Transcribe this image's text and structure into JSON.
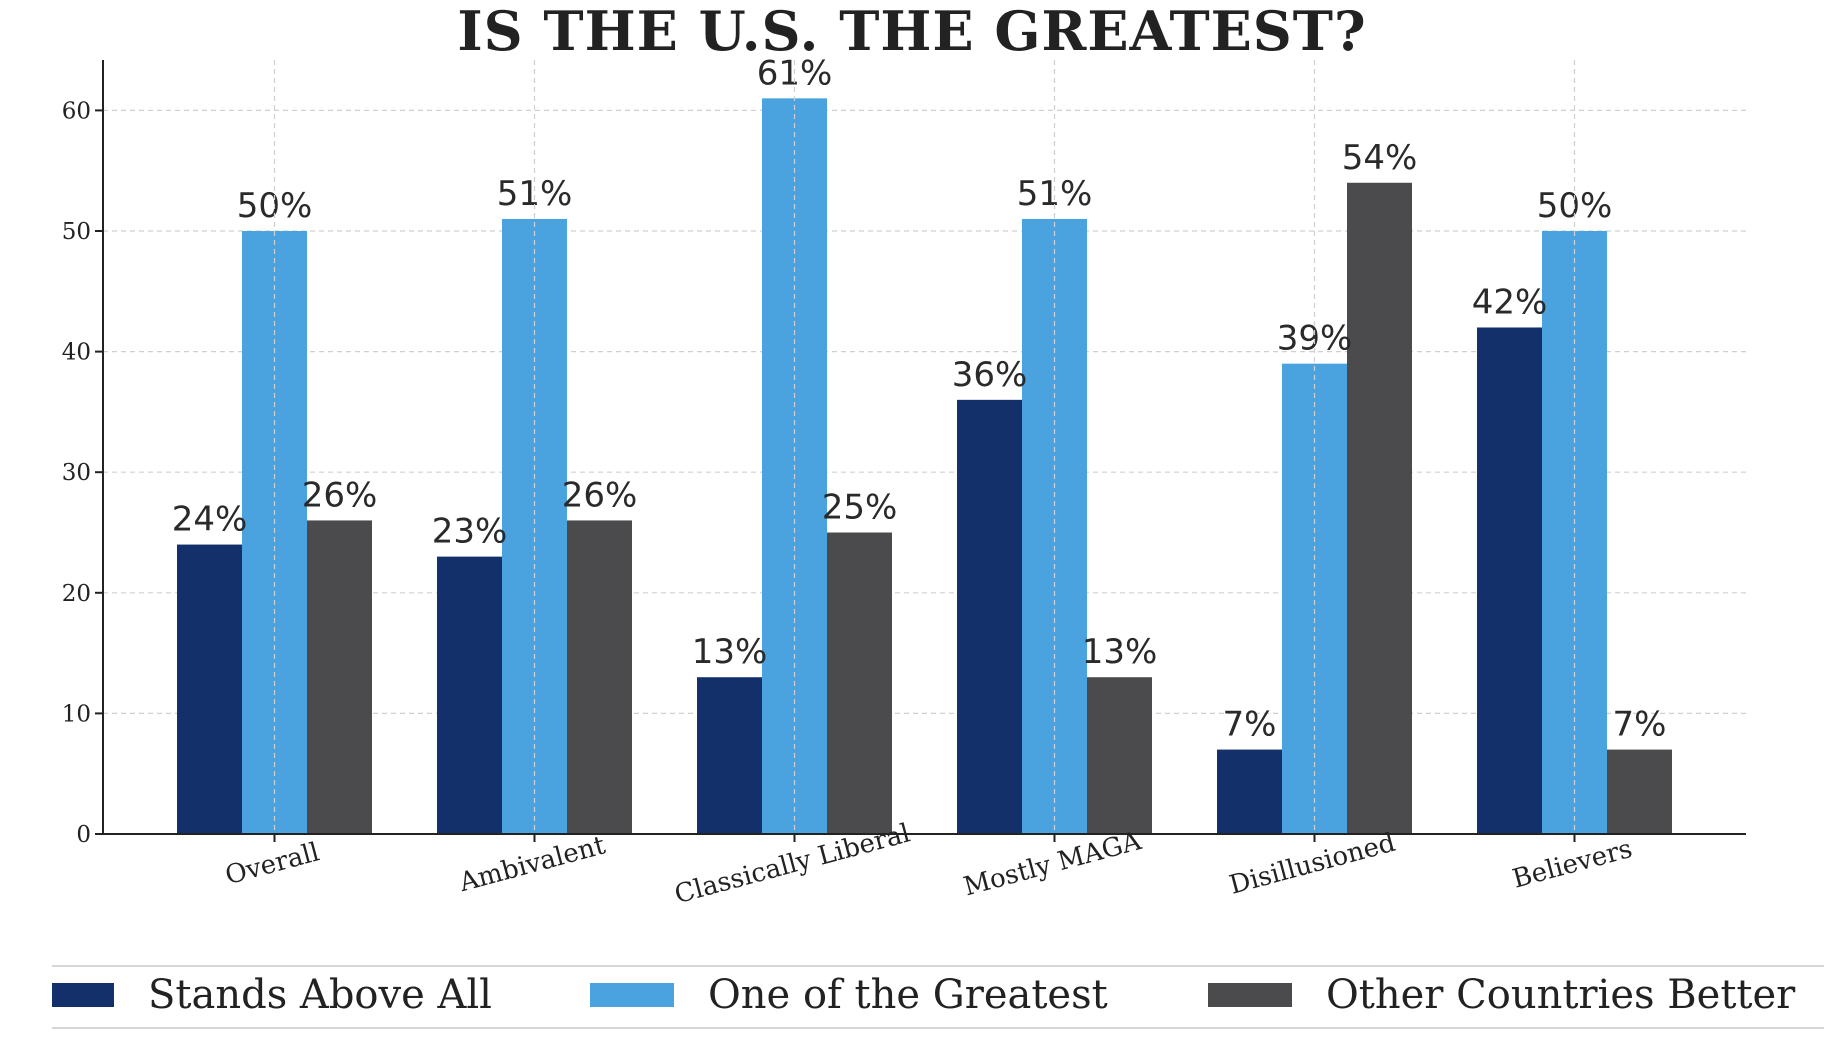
{
  "chart_data": {
    "type": "bar",
    "title": "IS THE U.S. THE GREATEST?",
    "xlabel": "",
    "ylabel": "",
    "ylim": [
      0,
      64
    ],
    "yticks": [
      0,
      10,
      20,
      30,
      40,
      50,
      60
    ],
    "grid": true,
    "legend_position": "bottom",
    "categories": [
      "Overall",
      "Ambivalent",
      "Classically Liberal",
      "Mostly MAGA",
      "Disillusioned",
      "Believers"
    ],
    "series": [
      {
        "name": "Stands Above All",
        "color": "#13306a",
        "values": [
          24,
          23,
          13,
          36,
          7,
          42
        ],
        "labels": [
          "24%",
          "23%",
          "13%",
          "36%",
          "7%",
          "42%"
        ]
      },
      {
        "name": "One of the Greatest",
        "color": "#4aa3de",
        "values": [
          50,
          51,
          61,
          51,
          39,
          50
        ],
        "labels": [
          "50%",
          "51%",
          "61%",
          "51%",
          "39%",
          "50%"
        ]
      },
      {
        "name": "Other Countries Better",
        "color": "#4b4b4d",
        "values": [
          26,
          26,
          25,
          13,
          54,
          7
        ],
        "labels": [
          "26%",
          "26%",
          "25%",
          "13%",
          "54%",
          "7%"
        ]
      }
    ]
  }
}
